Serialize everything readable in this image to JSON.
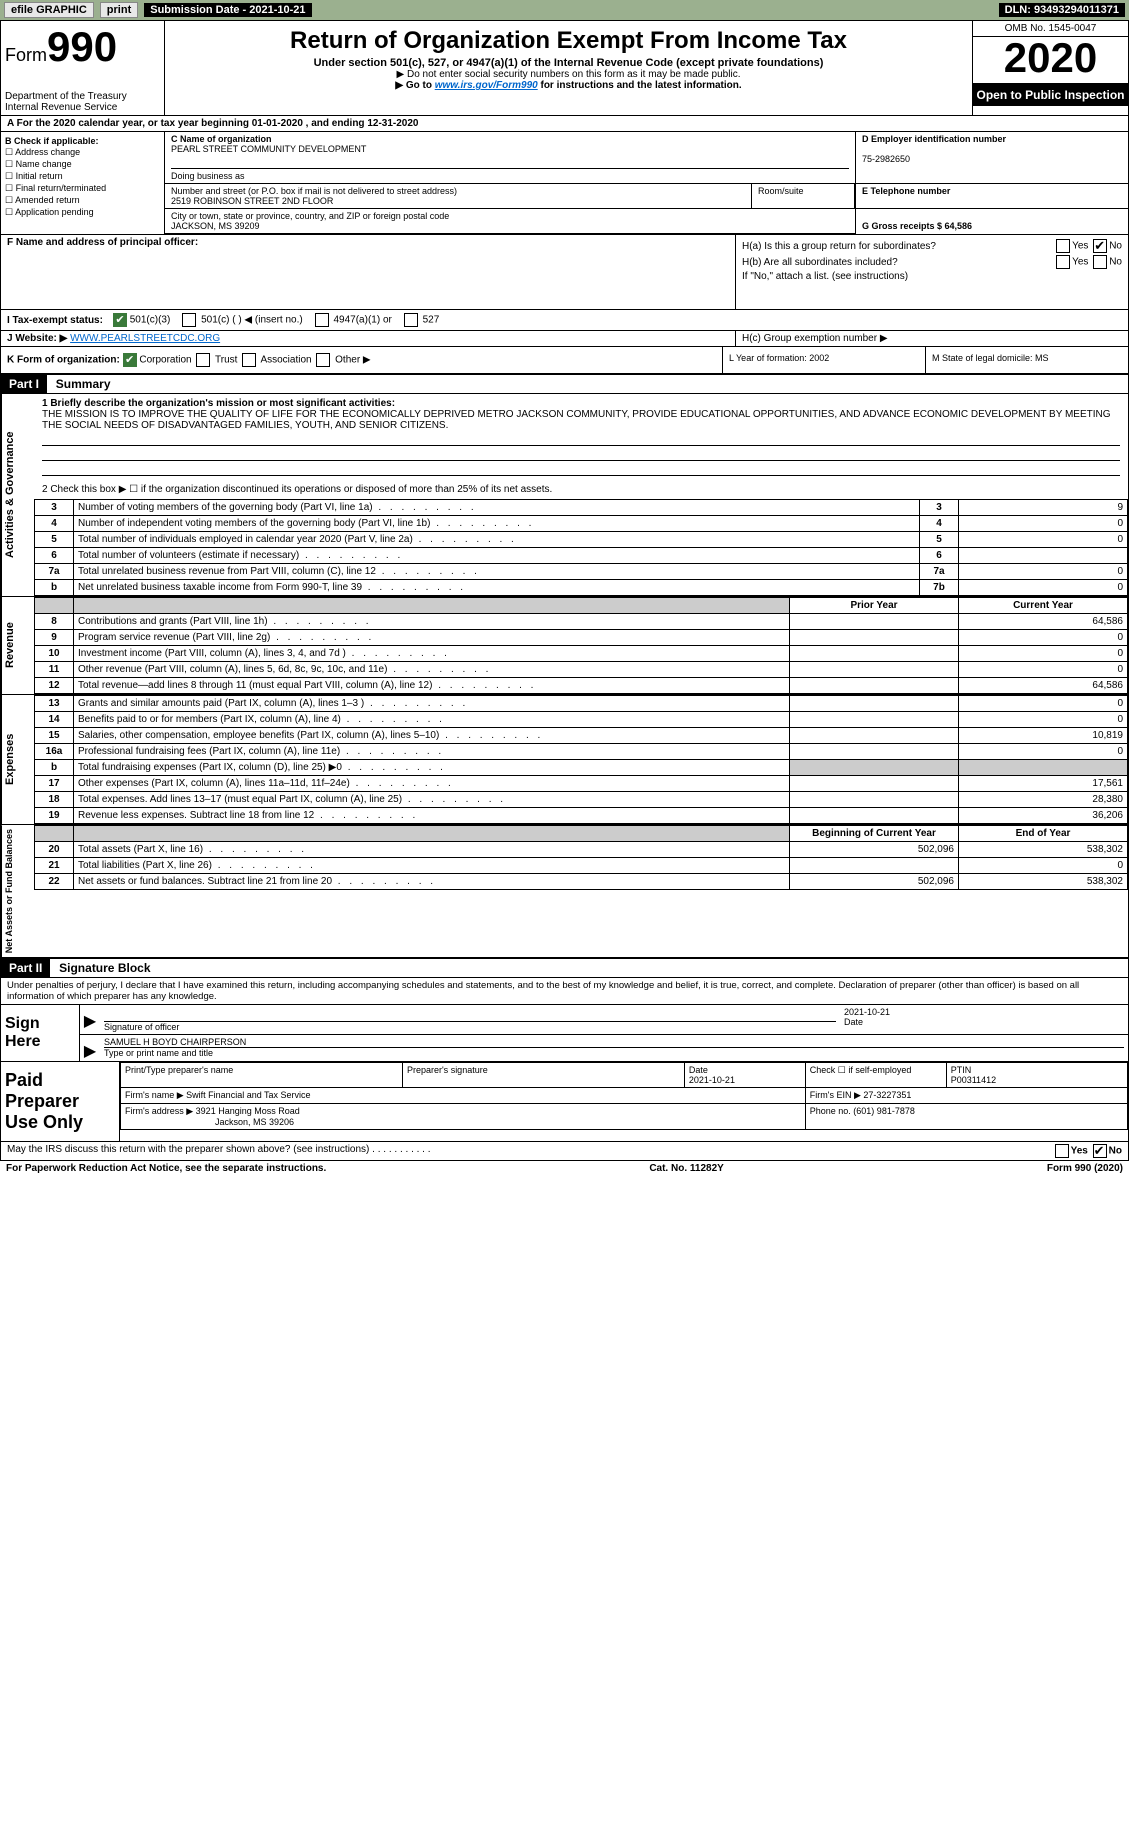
{
  "topbar": {
    "efile": "efile GRAPHIC",
    "print": "print",
    "submission_label": "Submission Date - 2021-10-21",
    "dln": "DLN: 93493294011371"
  },
  "header": {
    "form_prefix": "Form",
    "form_number": "990",
    "dept": "Department of the Treasury",
    "irs": "Internal Revenue Service",
    "title": "Return of Organization Exempt From Income Tax",
    "subtitle": "Under section 501(c), 527, or 4947(a)(1) of the Internal Revenue Code (except private foundations)",
    "note1": "▶ Do not enter social security numbers on this form as it may be made public.",
    "note2_pre": "▶ Go to ",
    "note2_link": "www.irs.gov/Form990",
    "note2_post": " for instructions and the latest information.",
    "omb": "OMB No. 1545-0047",
    "year": "2020",
    "open": "Open to Public Inspection"
  },
  "line_a": "A For the 2020 calendar year, or tax year beginning 01-01-2020   , and ending 12-31-2020",
  "col_b": {
    "label": "B Check if applicable:",
    "opts": [
      "☐ Address change",
      "☐ Name change",
      "☐ Initial return",
      "☐ Final return/terminated",
      "☐ Amended return",
      "☐ Application pending"
    ]
  },
  "name_block": {
    "c_label": "C Name of organization",
    "c_val": "PEARL STREET COMMUNITY DEVELOPMENT",
    "dba_label": "Doing business as",
    "addr_label": "Number and street (or P.O. box if mail is not delivered to street address)",
    "addr_val": "2519 ROBINSON STREET 2ND FLOOR",
    "room_label": "Room/suite",
    "city_label": "City or town, state or province, country, and ZIP or foreign postal code",
    "city_val": "JACKSON, MS  39209",
    "d_label": "D Employer identification number",
    "d_val": "75-2982650",
    "e_label": "E Telephone number",
    "g_label": "G Gross receipts $ 64,586"
  },
  "f_block": {
    "label": "F  Name and address of principal officer:"
  },
  "h_block": {
    "ha": "H(a)  Is this a group return for subordinates?",
    "hb": "H(b)  Are all subordinates included?",
    "hb_note": "If \"No,\" attach a list. (see instructions)",
    "hc": "H(c)  Group exemption number ▶",
    "yes": "Yes",
    "no": "No"
  },
  "tax_status": {
    "label": "I   Tax-exempt status:",
    "o1": "501(c)(3)",
    "o2": "501(c) (  ) ◀ (insert no.)",
    "o3": "4947(a)(1) or",
    "o4": "527"
  },
  "website": {
    "label": "J   Website: ▶",
    "val": "WWW.PEARLSTREETCDC.ORG"
  },
  "k_row": {
    "k": "K Form of organization:",
    "corp": "Corporation",
    "trust": "Trust",
    "assoc": "Association",
    "other": "Other ▶",
    "l": "L Year of formation: 2002",
    "m": "M State of legal domicile: MS"
  },
  "part1": {
    "header": "Part I",
    "title": "Summary",
    "side_gov": "Activities & Governance",
    "side_rev": "Revenue",
    "side_exp": "Expenses",
    "side_net": "Net Assets or Fund Balances",
    "q1_label": "1  Briefly describe the organization's mission or most significant activities:",
    "q1_text": "THE MISSION IS TO IMPROVE THE QUALITY OF LIFE FOR THE ECONOMICALLY DEPRIVED METRO JACKSON COMMUNITY, PROVIDE EDUCATIONAL OPPORTUNITIES, AND ADVANCE ECONOMIC DEVELOPMENT BY MEETING THE SOCIAL NEEDS OF DISADVANTAGED FAMILIES, YOUTH, AND SENIOR CITIZENS.",
    "q2": "2   Check this box ▶ ☐  if the organization discontinued its operations or disposed of more than 25% of its net assets.",
    "rows_gov": [
      {
        "n": "3",
        "t": "Number of voting members of the governing body (Part VI, line 1a)",
        "b": "3",
        "v": "9"
      },
      {
        "n": "4",
        "t": "Number of independent voting members of the governing body (Part VI, line 1b)",
        "b": "4",
        "v": "0"
      },
      {
        "n": "5",
        "t": "Total number of individuals employed in calendar year 2020 (Part V, line 2a)",
        "b": "5",
        "v": "0"
      },
      {
        "n": "6",
        "t": "Total number of volunteers (estimate if necessary)",
        "b": "6",
        "v": ""
      },
      {
        "n": "7a",
        "t": "Total unrelated business revenue from Part VIII, column (C), line 12",
        "b": "7a",
        "v": "0"
      },
      {
        "n": "b",
        "t": "Net unrelated business taxable income from Form 990-T, line 39",
        "b": "7b",
        "v": "0"
      }
    ],
    "col_prior": "Prior Year",
    "col_curr": "Current Year",
    "rows_rev": [
      {
        "n": "8",
        "t": "Contributions and grants (Part VIII, line 1h)",
        "p": "",
        "c": "64,586"
      },
      {
        "n": "9",
        "t": "Program service revenue (Part VIII, line 2g)",
        "p": "",
        "c": "0"
      },
      {
        "n": "10",
        "t": "Investment income (Part VIII, column (A), lines 3, 4, and 7d )",
        "p": "",
        "c": "0"
      },
      {
        "n": "11",
        "t": "Other revenue (Part VIII, column (A), lines 5, 6d, 8c, 9c, 10c, and 11e)",
        "p": "",
        "c": "0"
      },
      {
        "n": "12",
        "t": "Total revenue—add lines 8 through 11 (must equal Part VIII, column (A), line 12)",
        "p": "",
        "c": "64,586"
      }
    ],
    "rows_exp": [
      {
        "n": "13",
        "t": "Grants and similar amounts paid (Part IX, column (A), lines 1–3 )",
        "p": "",
        "c": "0"
      },
      {
        "n": "14",
        "t": "Benefits paid to or for members (Part IX, column (A), line 4)",
        "p": "",
        "c": "0"
      },
      {
        "n": "15",
        "t": "Salaries, other compensation, employee benefits (Part IX, column (A), lines 5–10)",
        "p": "",
        "c": "10,819"
      },
      {
        "n": "16a",
        "t": "Professional fundraising fees (Part IX, column (A), line 11e)",
        "p": "",
        "c": "0"
      },
      {
        "n": "b",
        "t": "Total fundraising expenses (Part IX, column (D), line 25) ▶0",
        "p": "GREY",
        "c": "GREY"
      },
      {
        "n": "17",
        "t": "Other expenses (Part IX, column (A), lines 11a–11d, 11f–24e)",
        "p": "",
        "c": "17,561"
      },
      {
        "n": "18",
        "t": "Total expenses. Add lines 13–17 (must equal Part IX, column (A), line 25)",
        "p": "",
        "c": "28,380"
      },
      {
        "n": "19",
        "t": "Revenue less expenses. Subtract line 18 from line 12",
        "p": "",
        "c": "36,206"
      }
    ],
    "col_beg": "Beginning of Current Year",
    "col_end": "End of Year",
    "rows_net": [
      {
        "n": "20",
        "t": "Total assets (Part X, line 16)",
        "p": "502,096",
        "c": "538,302"
      },
      {
        "n": "21",
        "t": "Total liabilities (Part X, line 26)",
        "p": "",
        "c": "0"
      },
      {
        "n": "22",
        "t": "Net assets or fund balances. Subtract line 21 from line 20",
        "p": "502,096",
        "c": "538,302"
      }
    ]
  },
  "part2": {
    "header": "Part II",
    "title": "Signature Block",
    "decl": "Under penalties of perjury, I declare that I have examined this return, including accompanying schedules and statements, and to the best of my knowledge and belief, it is true, correct, and complete. Declaration of preparer (other than officer) is based on all information of which preparer has any knowledge.",
    "sign_here": "Sign Here",
    "sig_officer_label": "Signature of officer",
    "date_label": "Date",
    "date_val": "2021-10-21",
    "name_title": "SAMUEL H BOYD CHAIRPERSON",
    "name_label": "Type or print name and title",
    "paid": "Paid Preparer Use Only",
    "pt_name": "Print/Type preparer's name",
    "pt_sig": "Preparer's signature",
    "pt_date_l": "Date",
    "pt_date": "2021-10-21",
    "pt_check": "Check ☐ if self-employed",
    "ptin_l": "PTIN",
    "ptin": "P00311412",
    "firm_name_l": "Firm's name    ▶",
    "firm_name": "Swift Financial and Tax Service",
    "firm_ein_l": "Firm's EIN ▶",
    "firm_ein": "27-3227351",
    "firm_addr_l": "Firm's address ▶",
    "firm_addr": "3921 Hanging Moss Road",
    "firm_city": "Jackson, MS  39206",
    "phone_l": "Phone no.",
    "phone": "(601) 981-7878",
    "discuss": "May the IRS discuss this return with the preparer shown above? (see instructions)   .   .   .   .   .   .   .   .   .   .   .",
    "d_yes": "Yes",
    "d_no": "No"
  },
  "footer": {
    "pra": "For Paperwork Reduction Act Notice, see the separate instructions.",
    "cat": "Cat. No. 11282Y",
    "form": "Form 990 (2020)"
  }
}
